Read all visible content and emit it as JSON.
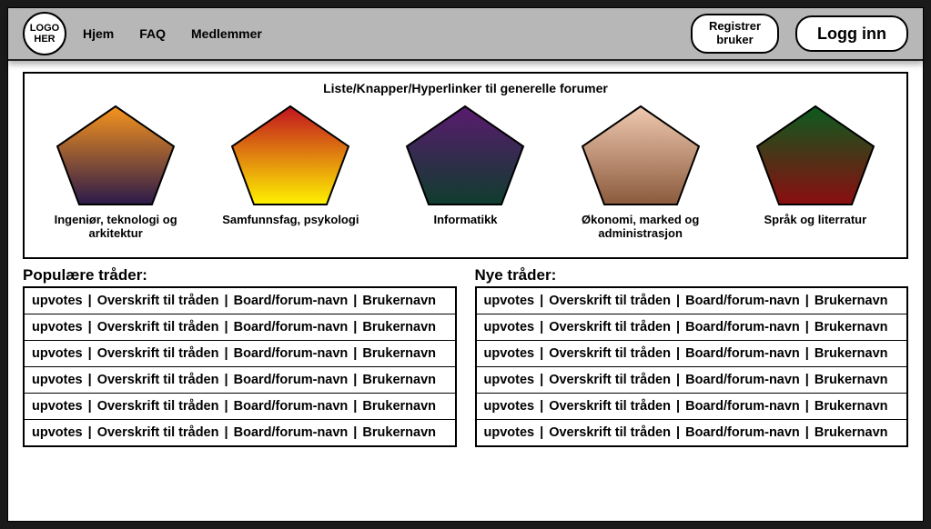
{
  "header": {
    "logo_text": "LOGO\nHER",
    "nav": [
      "Hjem",
      "FAQ",
      "Medlemmer"
    ],
    "register_label": "Registrer\nbruker",
    "login_label": "Logg inn"
  },
  "forums_box": {
    "title": "Liste/Knapper/Hyperlinker til  generelle forumer",
    "items": [
      {
        "label": "Ingeniør, teknologi og arkitektur",
        "gradient_top": "#f7941d",
        "gradient_bottom": "#2b1a4a",
        "stroke": "#000000"
      },
      {
        "label": "Samfunnsfag, psykologi",
        "gradient_top": "#c1121f",
        "gradient_bottom": "#fff200",
        "stroke": "#000000"
      },
      {
        "label": "Informatikk",
        "gradient_top": "#5a1a6f",
        "gradient_bottom": "#0f3d2e",
        "stroke": "#000000"
      },
      {
        "label": "Økonomi, marked og administrasjon",
        "gradient_top": "#efc9b0",
        "gradient_bottom": "#8b5a3c",
        "stroke": "#000000"
      },
      {
        "label": "Språk og literratur",
        "gradient_top": "#0b5b1e",
        "gradient_bottom": "#8b0d10",
        "stroke": "#000000"
      }
    ]
  },
  "lists": {
    "popular": {
      "title": "Populære tråder:",
      "row_template": {
        "upvotes": "upvotes",
        "headline": "Overskrift til tråden",
        "board": "Board/forum-navn",
        "user": "Brukernavn"
      },
      "row_count": 6
    },
    "newthreads": {
      "title": "Nye tråder:",
      "row_template": {
        "upvotes": "upvotes",
        "headline": "Overskrift til tråden",
        "board": "Board/forum-navn",
        "user": "Brukernavn"
      },
      "row_count": 6
    },
    "separator": " | "
  },
  "style": {
    "topbar_bg": "#b7b7b7",
    "page_bg": "#ffffff",
    "outer_bg": "#1a1a1a",
    "border_color": "#000000"
  }
}
